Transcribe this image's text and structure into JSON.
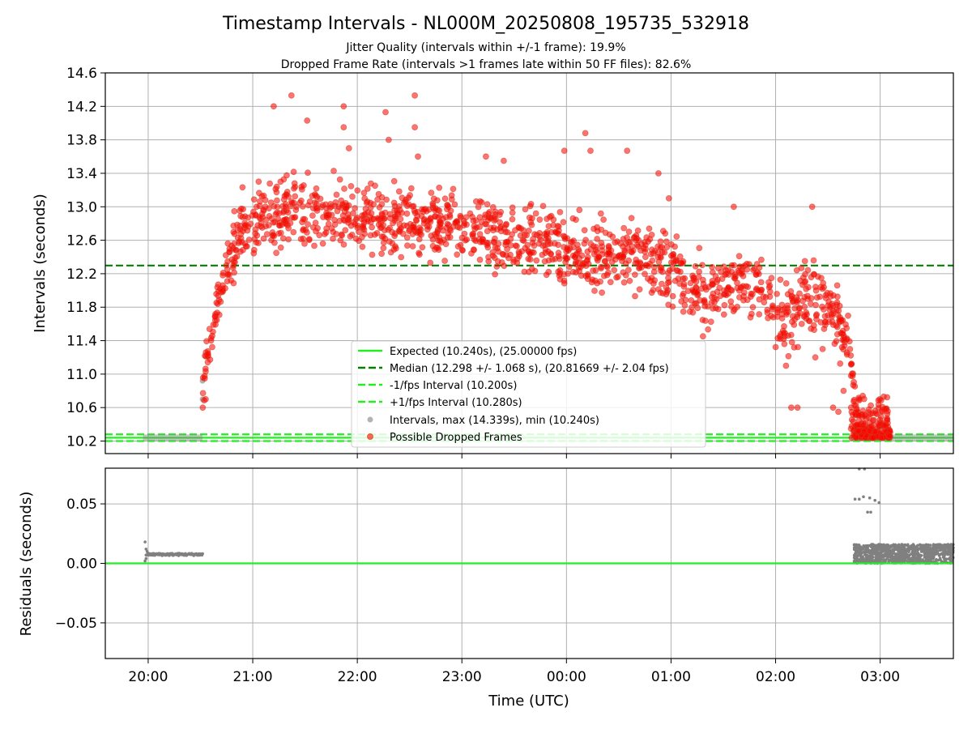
{
  "chart_data": [
    {
      "type": "scatter",
      "title": "Timestamp Intervals - NL000M_20250808_195735_532918",
      "subtitle_lines": [
        "Jitter Quality (intervals within +/-1 frame): 19.9%",
        "Dropped Frame Rate (intervals >1 frames late within 50 FF files): 82.6%"
      ],
      "xlabel": "",
      "ylabel": "Intervals (seconds)",
      "x_unit": "hours since 20:00 UTC (ticks printed as clock time)",
      "xlim": [
        -0.41,
        7.7
      ],
      "ylim": [
        10.05,
        14.6
      ],
      "yticks": [
        10.2,
        10.6,
        11.0,
        11.4,
        11.8,
        12.2,
        12.6,
        13.0,
        13.4,
        13.8,
        14.2,
        14.6
      ],
      "ytick_labels": [
        "10.2",
        "10.6",
        "11.0",
        "11.4",
        "11.8",
        "12.2",
        "12.6",
        "13.0",
        "13.4",
        "13.8",
        "14.2",
        "14.6"
      ],
      "grid": true,
      "legend_position": "lower-center",
      "reference_lines": [
        {
          "name": "Expected (10.240s), (25.00000 fps)",
          "y": 10.24,
          "style": "solid",
          "color": "#22ee22"
        },
        {
          "name": "Median (12.298 +/- 1.068 s), (20.81669 +/- 2.04 fps)",
          "y": 12.298,
          "style": "dashed",
          "color": "#008000"
        },
        {
          "name": "-1/fps Interval (10.200s)",
          "y": 10.2,
          "style": "dashed",
          "color": "#22ee22"
        },
        {
          "name": "+1/fps Interval (10.280s)",
          "y": 10.28,
          "style": "dashed",
          "color": "#22ee22"
        }
      ],
      "series": [
        {
          "name": "Intervals, max (14.339s), min (10.240s)",
          "color": "#808080",
          "segments": [
            {
              "x_start": -0.05,
              "x_end": 0.52,
              "y": 10.24
            },
            {
              "x_start": 6.72,
              "x_end": 7.7,
              "y": 10.24
            }
          ],
          "points": [
            [
              0.52,
              10.92
            ],
            [
              0.52,
              10.7
            ]
          ]
        },
        {
          "name": "Possible Dropped Frames",
          "color": "#ff0000",
          "trend": [
            [
              0.52,
              10.7
            ],
            [
              0.55,
              11.2
            ],
            [
              0.6,
              11.5
            ],
            [
              0.65,
              11.8
            ],
            [
              0.72,
              12.1
            ],
            [
              0.8,
              12.4
            ],
            [
              0.9,
              12.7
            ],
            [
              1.0,
              12.85
            ],
            [
              1.3,
              12.95
            ],
            [
              1.7,
              12.92
            ],
            [
              2.2,
              12.85
            ],
            [
              2.7,
              12.8
            ],
            [
              3.2,
              12.7
            ],
            [
              3.7,
              12.55
            ],
            [
              4.2,
              12.45
            ],
            [
              4.7,
              12.4
            ],
            [
              5.0,
              12.3
            ],
            [
              5.3,
              11.95
            ],
            [
              5.5,
              12.0
            ],
            [
              5.7,
              12.1
            ],
            [
              5.9,
              11.9
            ],
            [
              6.1,
              11.7
            ],
            [
              6.3,
              11.9
            ],
            [
              6.45,
              11.95
            ],
            [
              6.6,
              11.6
            ],
            [
              6.7,
              11.5
            ],
            [
              6.75,
              10.7
            ],
            [
              6.8,
              10.4
            ],
            [
              7.1,
              10.25
            ]
          ],
          "spread": 0.28,
          "high_outliers": [
            [
              1.2,
              14.2
            ],
            [
              1.37,
              14.33
            ],
            [
              1.52,
              14.03
            ],
            [
              1.87,
              14.2
            ],
            [
              1.87,
              13.95
            ],
            [
              1.92,
              13.7
            ],
            [
              2.27,
              14.13
            ],
            [
              2.3,
              13.8
            ],
            [
              2.55,
              14.33
            ],
            [
              2.55,
              13.95
            ],
            [
              2.58,
              13.6
            ],
            [
              3.23,
              13.6
            ],
            [
              3.4,
              13.55
            ],
            [
              3.98,
              13.67
            ],
            [
              4.18,
              13.88
            ],
            [
              4.23,
              13.67
            ],
            [
              4.58,
              13.67
            ],
            [
              4.88,
              13.4
            ],
            [
              4.98,
              13.1
            ],
            [
              5.6,
              13.0
            ],
            [
              6.35,
              13.0
            ],
            [
              6.28,
              12.35
            ]
          ],
          "low_outliers": [
            [
              6.15,
              10.6
            ],
            [
              6.21,
              10.6
            ],
            [
              6.55,
              10.6
            ],
            [
              6.6,
              10.55
            ],
            [
              6.45,
              11.3
            ],
            [
              6.38,
              11.2
            ],
            [
              6.1,
              11.1
            ],
            [
              6.25,
              11.6
            ],
            [
              0.55,
              10.7
            ],
            [
              6.65,
              10.8
            ],
            [
              6.8,
              10.7
            ],
            [
              6.85,
              10.5
            ]
          ]
        }
      ]
    },
    {
      "type": "scatter",
      "xlabel": "Time (UTC)",
      "ylabel": "Residuals (seconds)",
      "x_unit": "hours since 20:00 UTC (ticks printed as clock time)",
      "xlim": [
        -0.41,
        7.7
      ],
      "ylim": [
        -0.08,
        0.08
      ],
      "yticks": [
        -0.05,
        0.0,
        0.05
      ],
      "ytick_labels": [
        "−0.05",
        "0.00",
        "0.05"
      ],
      "xticks": [
        0,
        1,
        2,
        3,
        4,
        5,
        6,
        7
      ],
      "xtick_labels": [
        "20:00",
        "21:00",
        "22:00",
        "23:00",
        "00:00",
        "01:00",
        "02:00",
        "03:00"
      ],
      "grid": true,
      "reference_lines": [
        {
          "y": 0.0,
          "style": "solid",
          "color": "#22ee22"
        }
      ],
      "series": [
        {
          "name": "Residuals",
          "color": "#808080",
          "segments": [
            {
              "x_start": -0.02,
              "x_end": 0.52,
              "y": 0.0075
            },
            {
              "x_start": 6.75,
              "x_end": 7.7,
              "y_low": 0.0,
              "y_high": 0.016
            }
          ],
          "points": [
            [
              -0.03,
              0.018
            ],
            [
              -0.02,
              0.012
            ],
            [
              -0.01,
              0.01
            ],
            [
              -0.02,
              0.004
            ],
            [
              -0.03,
              0.002
            ],
            [
              6.76,
              0.054
            ],
            [
              6.8,
              0.054
            ],
            [
              6.84,
              0.056
            ],
            [
              6.9,
              0.055
            ],
            [
              6.95,
              0.053
            ],
            [
              6.88,
              0.043
            ],
            [
              6.91,
              0.043
            ],
            [
              6.99,
              0.051
            ],
            [
              6.8,
              0.08
            ],
            [
              6.85,
              0.08
            ],
            [
              6.76,
              0.015
            ],
            [
              6.78,
              0.005
            ],
            [
              6.8,
              0.012
            ],
            [
              6.84,
              0.002
            ],
            [
              6.87,
              0.014
            ],
            [
              6.9,
              0.006
            ],
            [
              6.93,
              0.016
            ]
          ]
        }
      ]
    }
  ]
}
